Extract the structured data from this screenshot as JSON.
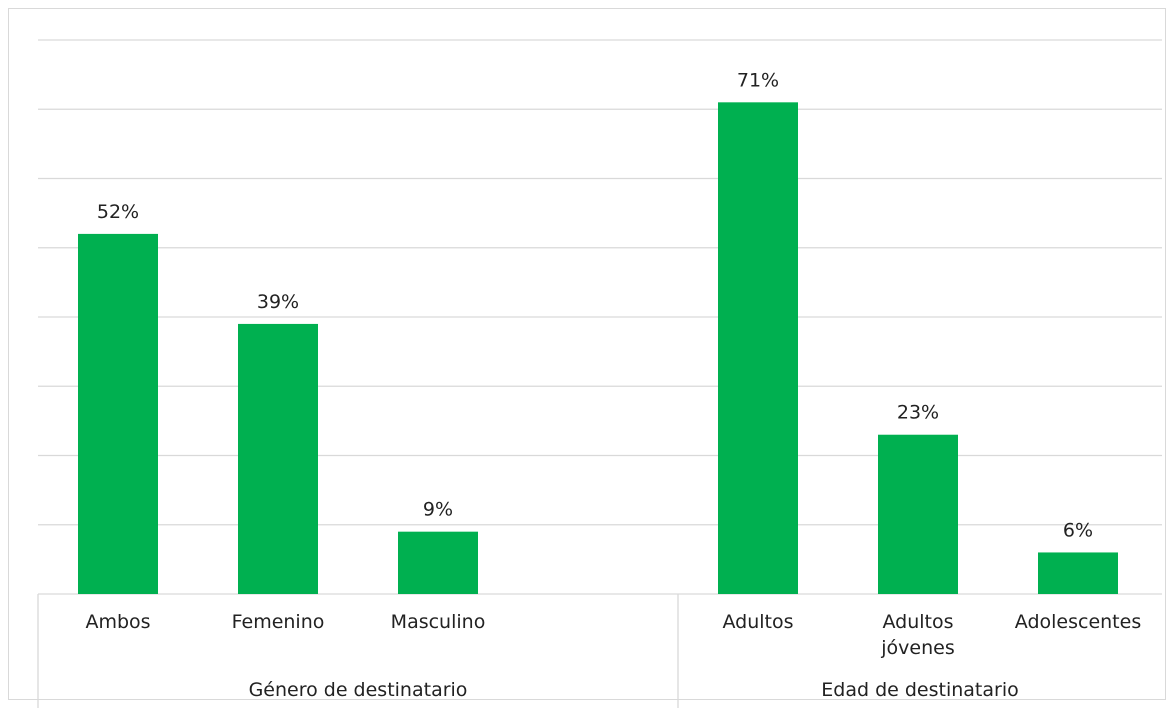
{
  "chart_data": {
    "type": "bar",
    "title": "",
    "xlabel": "",
    "ylabel": "",
    "ylim": [
      0,
      80
    ],
    "grid": true,
    "legend": "none",
    "bar_color": "#00b050",
    "grid_color": "#d9d9d9",
    "groups": [
      {
        "label": "Género de destinatario",
        "categories": [
          [
            "Ambos"
          ],
          [
            "Femenino"
          ],
          [
            "Masculino"
          ]
        ],
        "values": [
          52,
          39,
          9
        ],
        "value_labels": [
          "52%",
          "39%",
          "9%"
        ]
      },
      {
        "label": "Edad de destinatario",
        "categories": [
          [
            "Adultos"
          ],
          [
            "Adultos",
            "jóvenes"
          ],
          [
            "Adolescentes"
          ]
        ],
        "values": [
          71,
          23,
          6
        ],
        "value_labels": [
          "71%",
          "23%",
          "6%"
        ]
      }
    ]
  }
}
